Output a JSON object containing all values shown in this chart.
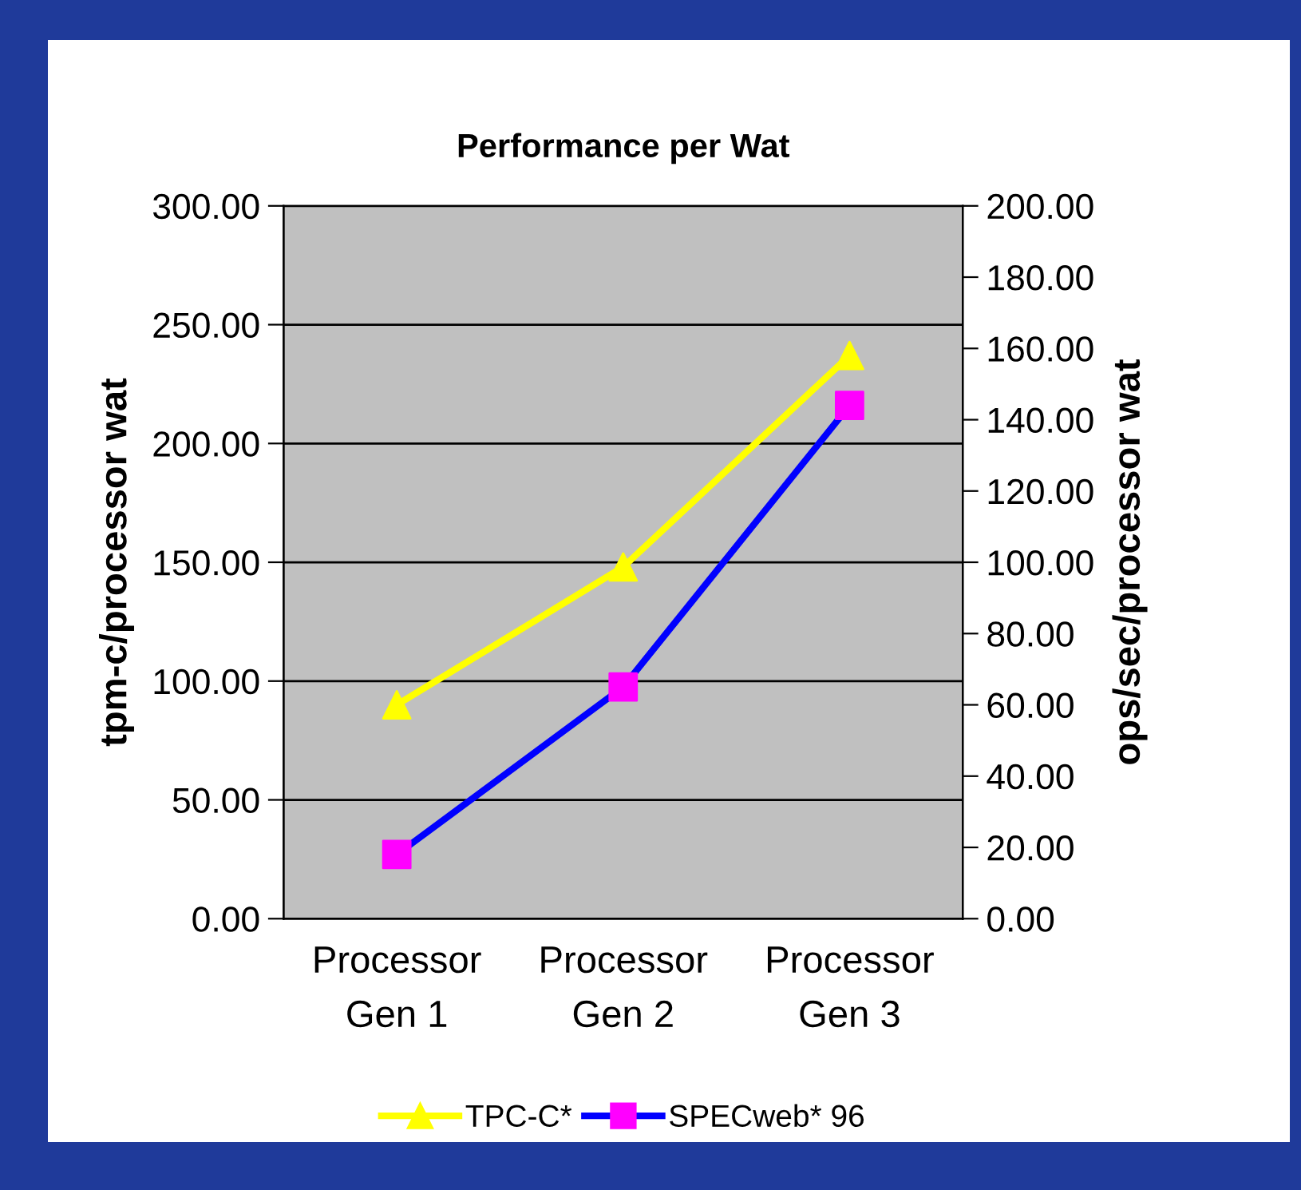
{
  "chart_data": {
    "type": "line",
    "title": "Performance per Wat",
    "ylabel": "tpm-c/processor wat",
    "y2label": "ops/sec/processor wat",
    "categories": [
      "Processor\nGen 1",
      "Processor\nGen 2",
      "Processor\nGen 3"
    ],
    "series": [
      {
        "name": "TPC-C*",
        "color": "#ffff00",
        "colors": [
          "#ffff00",
          "#ffff00",
          "#ffff00"
        ],
        "marker": "triangle",
        "values": [
          90,
          148,
          237
        ]
      },
      {
        "name": "SPECweb* 96",
        "color": "#0000ff",
        "colors": [
          "#ff00ff",
          "#ff00ff",
          "#ff00ff"
        ],
        "marker": "square",
        "axis": "y2",
        "values": [
          18,
          65,
          144
        ]
      }
    ],
    "ylim": [
      0,
      300
    ],
    "yticks": [
      {
        "value": 0,
        "label": "0.00"
      },
      {
        "value": 50,
        "label": "50.00"
      },
      {
        "value": 100,
        "label": "100.00"
      },
      {
        "value": 150,
        "label": "150.00"
      },
      {
        "value": 200,
        "label": "200.00"
      },
      {
        "value": 250,
        "label": "250.00"
      },
      {
        "value": 300,
        "label": "300.00"
      }
    ],
    "y2lim": [
      0,
      200
    ],
    "y2ticks": [
      {
        "value": 0,
        "label": "0.00"
      },
      {
        "value": 20,
        "label": "20.00"
      },
      {
        "value": 40,
        "label": "40.00"
      },
      {
        "value": 60,
        "label": "60.00"
      },
      {
        "value": 80,
        "label": "80.00"
      },
      {
        "value": 100,
        "label": "100.00"
      },
      {
        "value": 120,
        "label": "120.00"
      },
      {
        "value": 140,
        "label": "140.00"
      },
      {
        "value": 160,
        "label": "160.00"
      },
      {
        "value": 180,
        "label": "180.00"
      },
      {
        "value": 200,
        "label": "200.00"
      }
    ],
    "grid": "y",
    "legend": "bottom"
  }
}
